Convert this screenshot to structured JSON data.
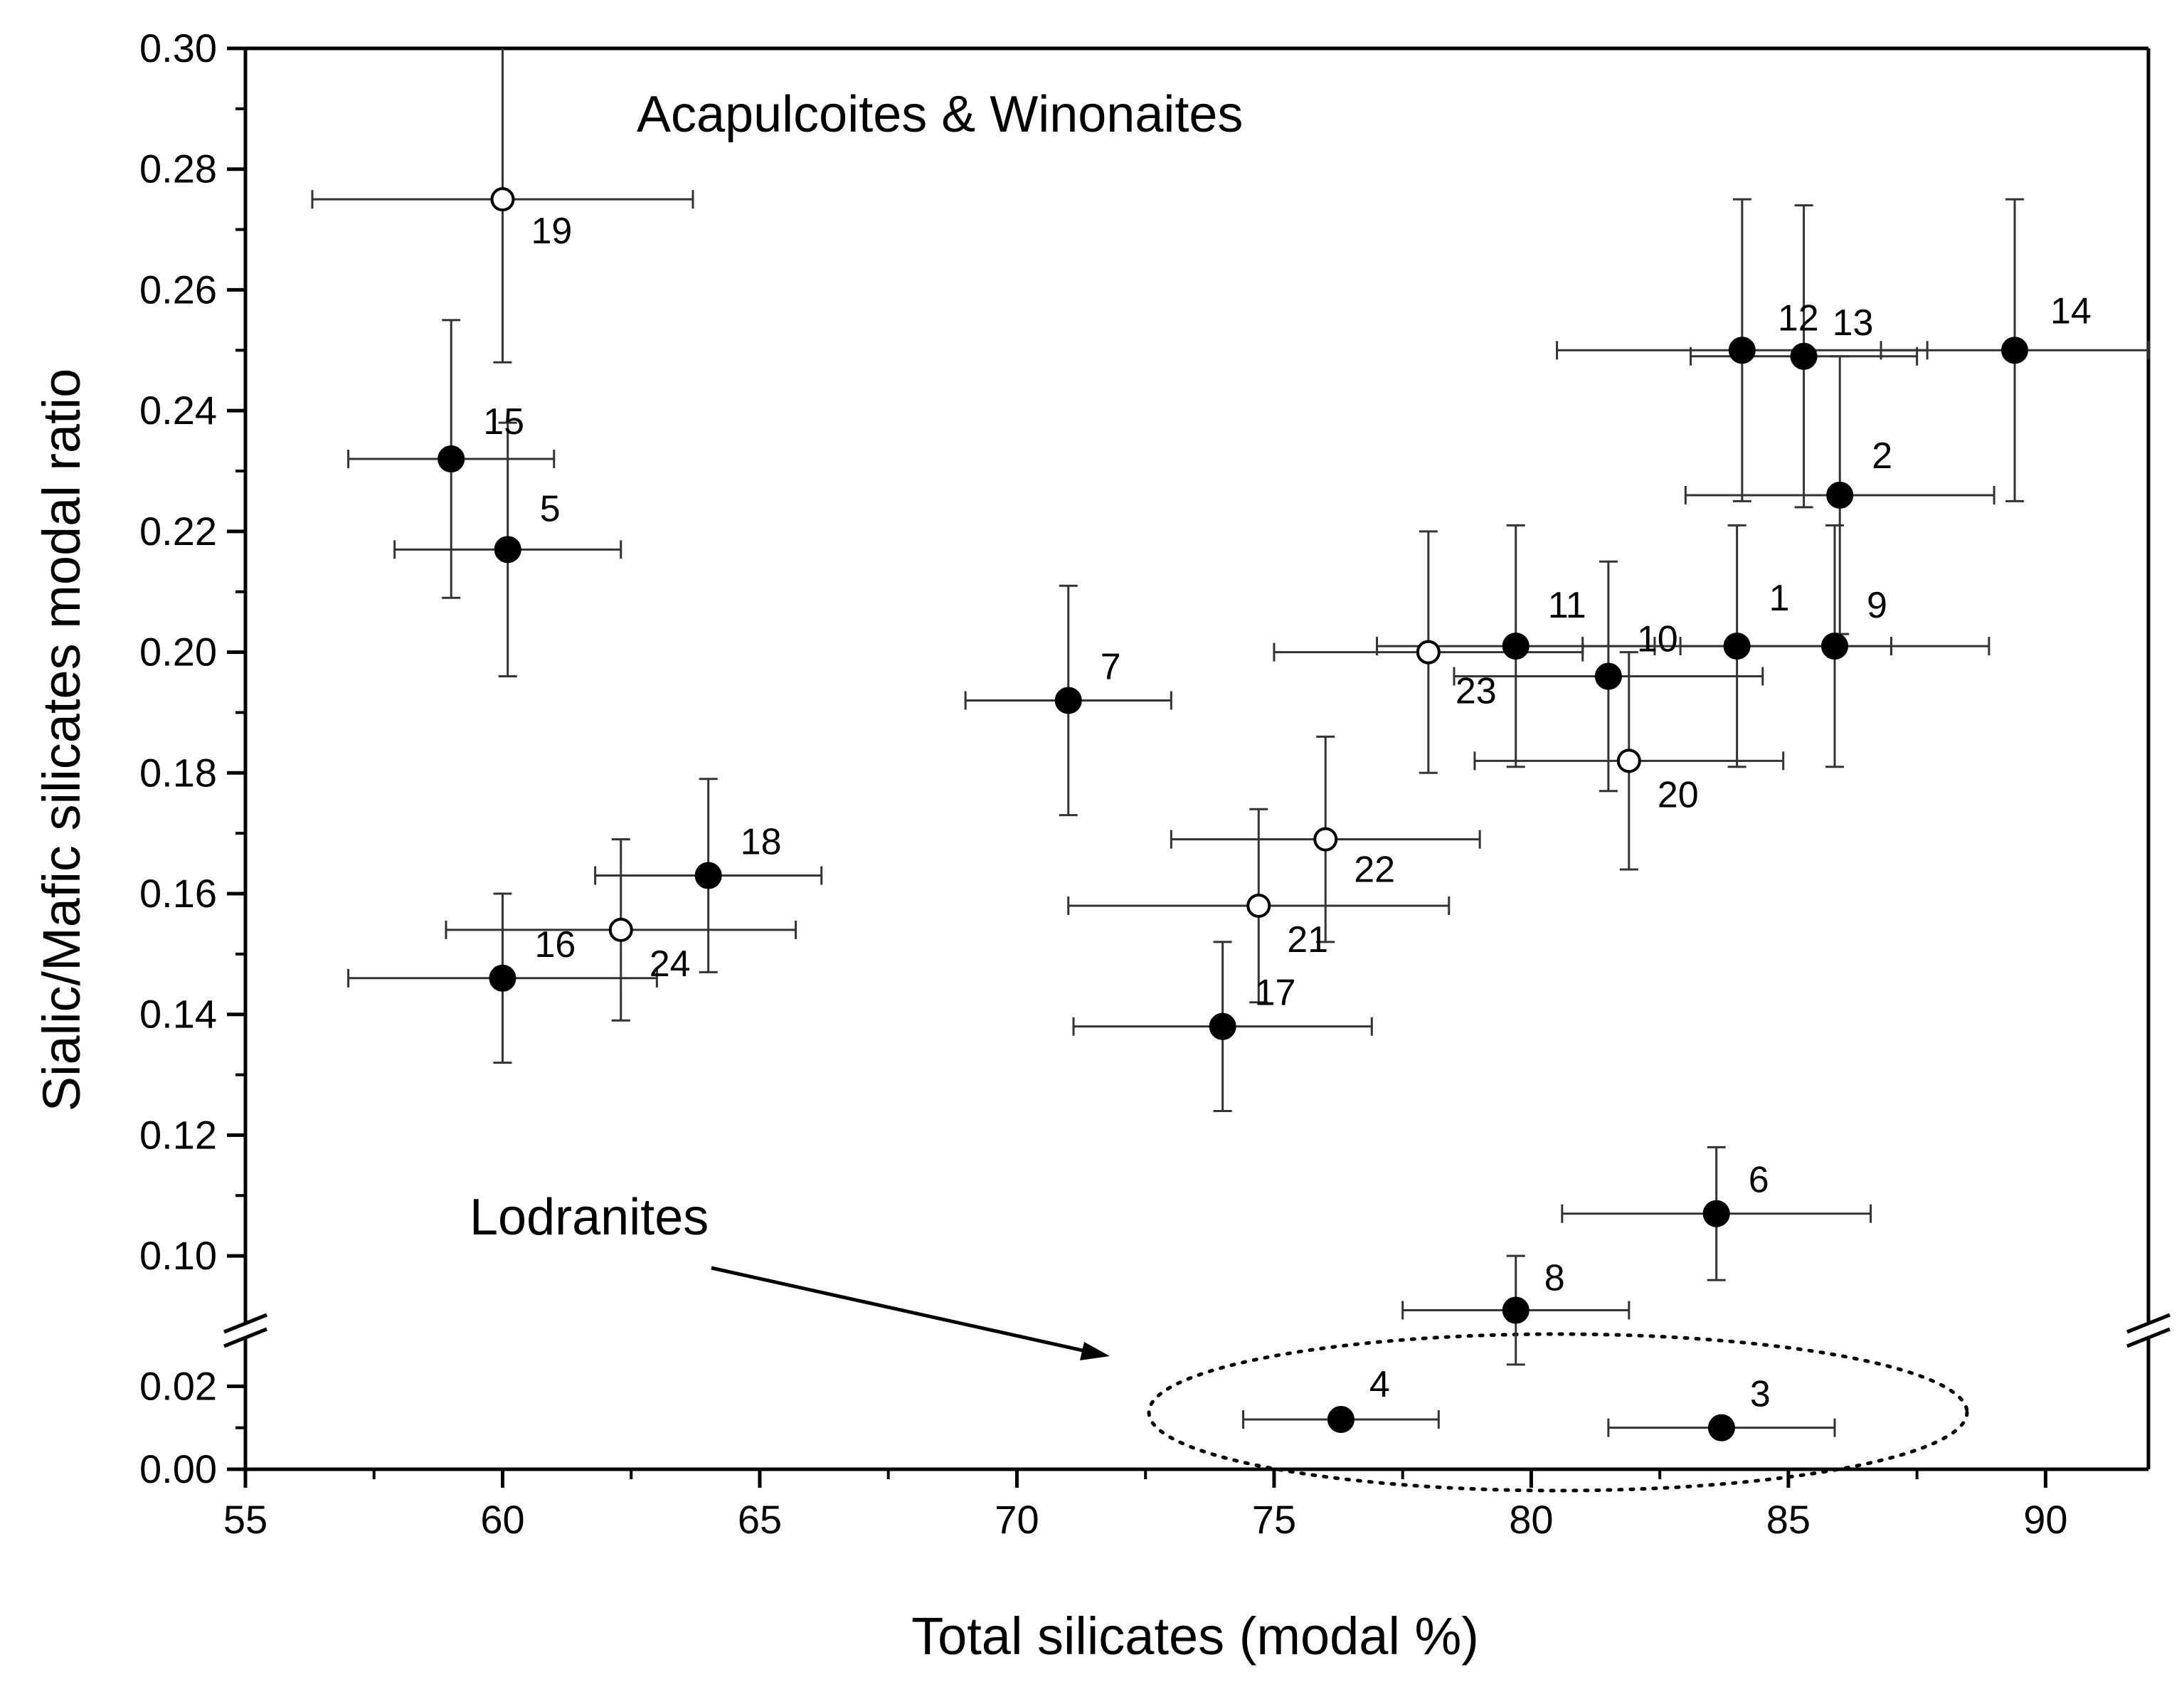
{
  "chart_data": {
    "type": "scatter",
    "xlabel": "Total silicates (modal %)",
    "ylabel": "Sialic/Mafic silicates modal ratio",
    "xlim": [
      55,
      92
    ],
    "x_ticks": [
      55,
      60,
      65,
      70,
      75,
      80,
      85,
      90
    ],
    "x_tick_labels": [
      "55",
      "60",
      "65",
      "70",
      "75",
      "80",
      "85",
      "90"
    ],
    "upper_ylim": [
      0.09,
      0.3
    ],
    "upper_y_ticks": [
      0.1,
      0.12,
      0.14,
      0.16,
      0.18,
      0.2,
      0.22,
      0.24,
      0.26,
      0.28,
      0.3
    ],
    "upper_y_tick_labels": [
      "0.10",
      "0.12",
      "0.14",
      "0.16",
      "0.18",
      "0.20",
      "0.22",
      "0.24",
      "0.26",
      "0.28",
      "0.30"
    ],
    "lower_ylim": [
      0.0,
      0.03
    ],
    "lower_y_ticks": [
      0.0,
      0.02
    ],
    "lower_y_tick_labels": [
      "0.00",
      "0.02"
    ],
    "axis_break": true,
    "annotations": {
      "acapulcoites": "Acapulcoites & Winonaites",
      "lodranites": "Lodranites"
    },
    "points": [
      {
        "label": "1",
        "x": 84.0,
        "y": 0.201,
        "xerr": 3.0,
        "yerr": 0.02,
        "filled": true
      },
      {
        "label": "2",
        "x": 86.0,
        "y": 0.226,
        "xerr": 3.0,
        "yerr": 0.023,
        "filled": true
      },
      {
        "label": "3",
        "x": 83.7,
        "y": 0.01,
        "xerr": 2.2,
        "yerr": 0.0,
        "filled": true
      },
      {
        "label": "4",
        "x": 76.3,
        "y": 0.012,
        "xerr": 1.9,
        "yerr": 0.0,
        "filled": true
      },
      {
        "label": "5",
        "x": 60.1,
        "y": 0.217,
        "xerr": 2.2,
        "yerr": 0.021,
        "filled": true
      },
      {
        "label": "6",
        "x": 83.6,
        "y": 0.107,
        "xerr": 3.0,
        "yerr": 0.011,
        "filled": true
      },
      {
        "label": "7",
        "x": 71.0,
        "y": 0.192,
        "xerr": 2.0,
        "yerr": 0.019,
        "filled": true
      },
      {
        "label": "8",
        "x": 79.7,
        "y": 0.091,
        "xerr": 2.2,
        "yerr": 0.009,
        "filled": true
      },
      {
        "label": "9",
        "x": 85.9,
        "y": 0.201,
        "xerr": 3.0,
        "yerr": 0.02,
        "filled": true
      },
      {
        "label": "10",
        "x": 81.5,
        "y": 0.196,
        "xerr": 3.0,
        "yerr": 0.019,
        "filled": true
      },
      {
        "label": "11",
        "x": 79.7,
        "y": 0.201,
        "xerr": 2.7,
        "yerr": 0.02,
        "filled": true
      },
      {
        "label": "12",
        "x": 84.1,
        "y": 0.25,
        "xerr": 3.6,
        "yerr": 0.025,
        "filled": true
      },
      {
        "label": "13",
        "x": 85.3,
        "y": 0.249,
        "xerr": 2.2,
        "yerr": 0.025,
        "filled": true
      },
      {
        "label": "14",
        "x": 89.4,
        "y": 0.25,
        "xerr": 2.6,
        "yerr": 0.025,
        "filled": true
      },
      {
        "label": "15",
        "x": 59.0,
        "y": 0.232,
        "xerr": 2.0,
        "yerr": 0.023,
        "filled": true
      },
      {
        "label": "16",
        "x": 60.0,
        "y": 0.146,
        "xerr": 3.0,
        "yerr": 0.014,
        "filled": true
      },
      {
        "label": "17",
        "x": 74.0,
        "y": 0.138,
        "xerr": 2.9,
        "yerr": 0.014,
        "filled": true
      },
      {
        "label": "18",
        "x": 64.0,
        "y": 0.163,
        "xerr": 2.2,
        "yerr": 0.016,
        "filled": true
      },
      {
        "label": "19",
        "x": 60.0,
        "y": 0.275,
        "xerr": 3.7,
        "yerr": 0.027,
        "filled": false
      },
      {
        "label": "20",
        "x": 81.9,
        "y": 0.182,
        "xerr": 3.0,
        "yerr": 0.018,
        "filled": false
      },
      {
        "label": "21",
        "x": 74.7,
        "y": 0.158,
        "xerr": 3.7,
        "yerr": 0.016,
        "filled": false
      },
      {
        "label": "22",
        "x": 76.0,
        "y": 0.169,
        "xerr": 3.0,
        "yerr": 0.017,
        "filled": false
      },
      {
        "label": "23",
        "x": 78.0,
        "y": 0.2,
        "xerr": 3.0,
        "yerr": 0.02,
        "filled": false
      },
      {
        "label": "24",
        "x": 62.3,
        "y": 0.154,
        "xerr": 3.4,
        "yerr": 0.015,
        "filled": false
      }
    ]
  }
}
